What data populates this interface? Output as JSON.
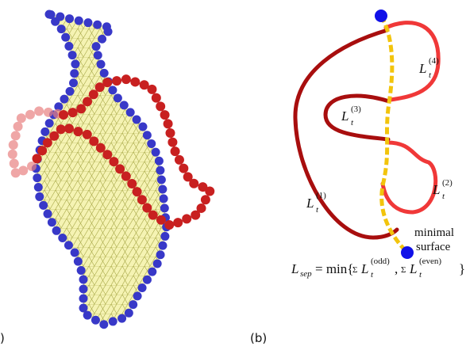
{
  "panel_a": {
    "label": ")"
  },
  "panel_b": {
    "label": "(b)",
    "curve_labels": [
      {
        "base": "L",
        "sub": "t",
        "sup": "(1)"
      },
      {
        "base": "L",
        "sub": "t",
        "sup": "(2)"
      },
      {
        "base": "L",
        "sub": "t",
        "sup": "(3)"
      },
      {
        "base": "L",
        "sub": "t",
        "sup": "(4)"
      }
    ],
    "surface_label": [
      "minimal",
      "surface"
    ],
    "formula": {
      "lhs": "L",
      "lhs_sub": "sep",
      "eq": "= min{",
      "sum1": "Σ",
      "term1_base": "L",
      "term1_sub": "t",
      "term1_sup": "(odd)",
      "comma": ",",
      "sum2": "Σ",
      "term2_base": "L",
      "term2_sub": "t",
      "term2_sup": "(even)",
      "close": "}"
    }
  }
}
